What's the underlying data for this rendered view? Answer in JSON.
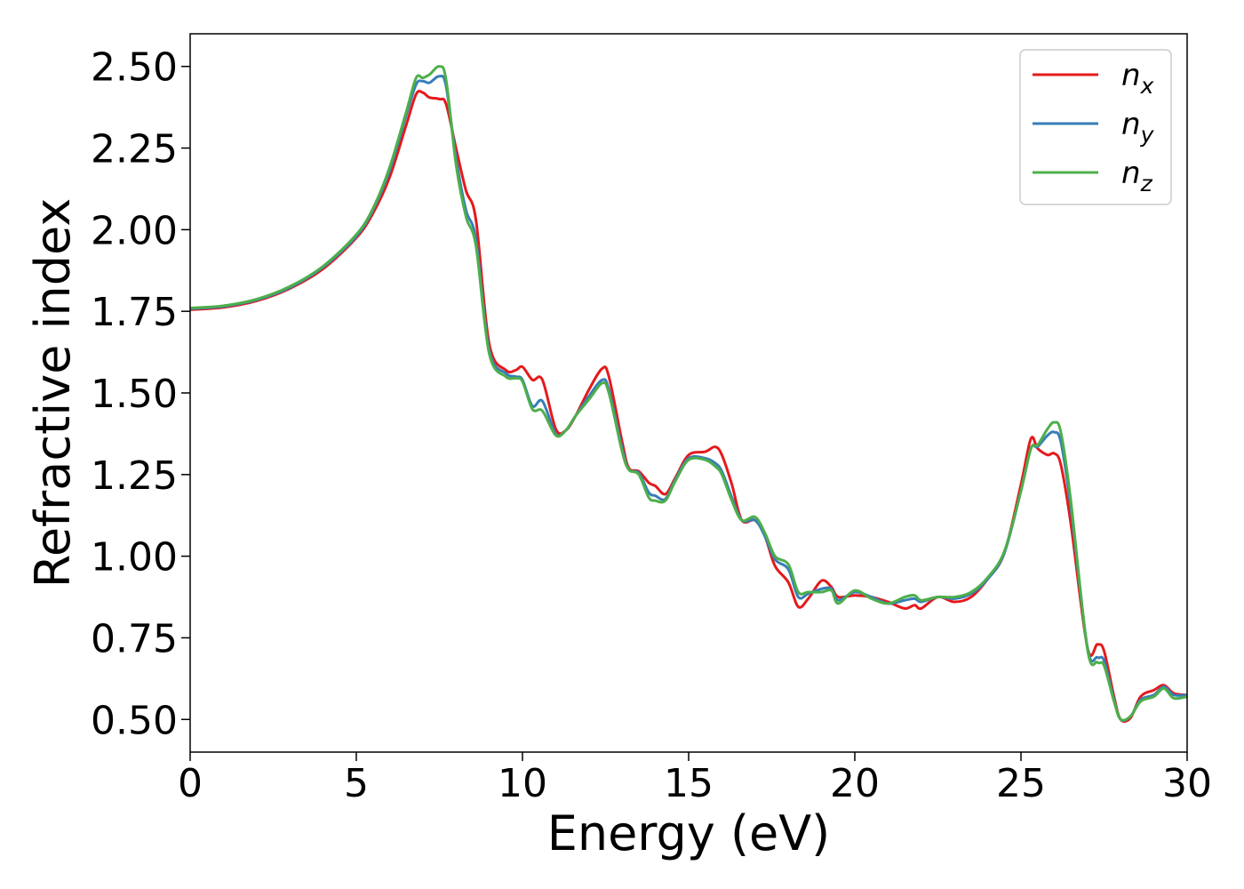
{
  "chart_data": {
    "type": "line",
    "title": "",
    "xlabel": "Energy (eV)",
    "ylabel": "Refractive index",
    "xlim": [
      0,
      30
    ],
    "ylim": [
      0.4,
      2.6
    ],
    "xticks": [
      0,
      5,
      10,
      15,
      20,
      25,
      30
    ],
    "xtick_labels": [
      "0",
      "5",
      "10",
      "15",
      "20",
      "25",
      "30"
    ],
    "yticks": [
      0.5,
      0.75,
      1.0,
      1.25,
      1.5,
      1.75,
      2.0,
      2.25,
      2.5
    ],
    "ytick_labels": [
      "0.50",
      "0.75",
      "1.00",
      "1.25",
      "1.50",
      "1.75",
      "2.00",
      "2.25",
      "2.50"
    ],
    "grid": false,
    "legend_position": "top-right",
    "series": [
      {
        "name": "n",
        "subscript": "x",
        "color": "#e41a1c",
        "points": [
          [
            0,
            1.755
          ],
          [
            1,
            1.762
          ],
          [
            2,
            1.782
          ],
          [
            3,
            1.82
          ],
          [
            4,
            1.88
          ],
          [
            5,
            1.975
          ],
          [
            5.5,
            2.05
          ],
          [
            6,
            2.16
          ],
          [
            6.5,
            2.32
          ],
          [
            6.8,
            2.415
          ],
          [
            7,
            2.42
          ],
          [
            7.2,
            2.405
          ],
          [
            7.5,
            2.4
          ],
          [
            7.7,
            2.385
          ],
          [
            8,
            2.25
          ],
          [
            8.3,
            2.12
          ],
          [
            8.6,
            2.03
          ],
          [
            9,
            1.65
          ],
          [
            9.5,
            1.57
          ],
          [
            9.8,
            1.57
          ],
          [
            10,
            1.58
          ],
          [
            10.3,
            1.54
          ],
          [
            10.6,
            1.54
          ],
          [
            11,
            1.39
          ],
          [
            11.3,
            1.385
          ],
          [
            11.6,
            1.43
          ],
          [
            12,
            1.51
          ],
          [
            12.4,
            1.575
          ],
          [
            12.6,
            1.55
          ],
          [
            13,
            1.35
          ],
          [
            13.2,
            1.27
          ],
          [
            13.5,
            1.26
          ],
          [
            13.8,
            1.225
          ],
          [
            14,
            1.215
          ],
          [
            14.3,
            1.19
          ],
          [
            14.6,
            1.24
          ],
          [
            15,
            1.31
          ],
          [
            15.5,
            1.32
          ],
          [
            15.8,
            1.335
          ],
          [
            16,
            1.31
          ],
          [
            16.3,
            1.22
          ],
          [
            16.6,
            1.11
          ],
          [
            17,
            1.11
          ],
          [
            17.3,
            1.06
          ],
          [
            17.6,
            0.97
          ],
          [
            18,
            0.92
          ],
          [
            18.3,
            0.845
          ],
          [
            18.6,
            0.87
          ],
          [
            19,
            0.925
          ],
          [
            19.3,
            0.905
          ],
          [
            19.5,
            0.875
          ],
          [
            20,
            0.88
          ],
          [
            20.5,
            0.875
          ],
          [
            21,
            0.86
          ],
          [
            21.5,
            0.84
          ],
          [
            21.8,
            0.85
          ],
          [
            22,
            0.84
          ],
          [
            22.5,
            0.875
          ],
          [
            23,
            0.86
          ],
          [
            23.5,
            0.875
          ],
          [
            24,
            0.93
          ],
          [
            24.5,
            1.01
          ],
          [
            25,
            1.22
          ],
          [
            25.3,
            1.36
          ],
          [
            25.5,
            1.33
          ],
          [
            25.8,
            1.31
          ],
          [
            26,
            1.315
          ],
          [
            26.2,
            1.28
          ],
          [
            26.5,
            1.1
          ],
          [
            27,
            0.72
          ],
          [
            27.3,
            0.73
          ],
          [
            27.5,
            0.71
          ],
          [
            27.8,
            0.57
          ],
          [
            28,
            0.5
          ],
          [
            28.3,
            0.505
          ],
          [
            28.6,
            0.57
          ],
          [
            29,
            0.59
          ],
          [
            29.3,
            0.605
          ],
          [
            29.6,
            0.58
          ],
          [
            30,
            0.575
          ]
        ]
      },
      {
        "name": "n",
        "subscript": "y",
        "color": "#377eb8",
        "points": [
          [
            0,
            1.758
          ],
          [
            1,
            1.765
          ],
          [
            2,
            1.785
          ],
          [
            3,
            1.823
          ],
          [
            4,
            1.885
          ],
          [
            5,
            1.98
          ],
          [
            5.5,
            2.06
          ],
          [
            6,
            2.18
          ],
          [
            6.5,
            2.35
          ],
          [
            6.8,
            2.445
          ],
          [
            7,
            2.455
          ],
          [
            7.2,
            2.45
          ],
          [
            7.5,
            2.47
          ],
          [
            7.7,
            2.44
          ],
          [
            8,
            2.22
          ],
          [
            8.3,
            2.06
          ],
          [
            8.6,
            1.97
          ],
          [
            9,
            1.63
          ],
          [
            9.5,
            1.56
          ],
          [
            9.8,
            1.55
          ],
          [
            10,
            1.54
          ],
          [
            10.3,
            1.46
          ],
          [
            10.6,
            1.475
          ],
          [
            11,
            1.375
          ],
          [
            11.3,
            1.385
          ],
          [
            11.6,
            1.43
          ],
          [
            12,
            1.49
          ],
          [
            12.4,
            1.54
          ],
          [
            12.6,
            1.51
          ],
          [
            13,
            1.33
          ],
          [
            13.2,
            1.265
          ],
          [
            13.5,
            1.255
          ],
          [
            13.8,
            1.195
          ],
          [
            14,
            1.185
          ],
          [
            14.3,
            1.175
          ],
          [
            14.6,
            1.235
          ],
          [
            15,
            1.3
          ],
          [
            15.5,
            1.3
          ],
          [
            15.8,
            1.285
          ],
          [
            16,
            1.26
          ],
          [
            16.3,
            1.18
          ],
          [
            16.6,
            1.11
          ],
          [
            17,
            1.11
          ],
          [
            17.3,
            1.06
          ],
          [
            17.6,
            0.99
          ],
          [
            18,
            0.96
          ],
          [
            18.3,
            0.875
          ],
          [
            18.6,
            0.885
          ],
          [
            19,
            0.9
          ],
          [
            19.3,
            0.9
          ],
          [
            19.5,
            0.865
          ],
          [
            20,
            0.89
          ],
          [
            20.5,
            0.875
          ],
          [
            21,
            0.855
          ],
          [
            21.5,
            0.865
          ],
          [
            21.8,
            0.87
          ],
          [
            22,
            0.86
          ],
          [
            22.5,
            0.875
          ],
          [
            23,
            0.87
          ],
          [
            23.5,
            0.885
          ],
          [
            24,
            0.93
          ],
          [
            24.5,
            1.01
          ],
          [
            25,
            1.2
          ],
          [
            25.3,
            1.33
          ],
          [
            25.5,
            1.335
          ],
          [
            25.8,
            1.37
          ],
          [
            26,
            1.38
          ],
          [
            26.2,
            1.35
          ],
          [
            26.5,
            1.15
          ],
          [
            27,
            0.72
          ],
          [
            27.3,
            0.69
          ],
          [
            27.5,
            0.68
          ],
          [
            27.8,
            0.56
          ],
          [
            28,
            0.5
          ],
          [
            28.3,
            0.51
          ],
          [
            28.6,
            0.56
          ],
          [
            29,
            0.575
          ],
          [
            29.3,
            0.6
          ],
          [
            29.6,
            0.575
          ],
          [
            30,
            0.575
          ]
        ]
      },
      {
        "name": "n",
        "subscript": "z",
        "color": "#4daf4a",
        "points": [
          [
            0,
            1.76
          ],
          [
            1,
            1.767
          ],
          [
            2,
            1.787
          ],
          [
            3,
            1.826
          ],
          [
            4,
            1.888
          ],
          [
            5,
            1.985
          ],
          [
            5.5,
            2.065
          ],
          [
            6,
            2.19
          ],
          [
            6.5,
            2.36
          ],
          [
            6.8,
            2.465
          ],
          [
            7,
            2.465
          ],
          [
            7.2,
            2.475
          ],
          [
            7.5,
            2.5
          ],
          [
            7.7,
            2.46
          ],
          [
            8,
            2.2
          ],
          [
            8.3,
            2.04
          ],
          [
            8.6,
            1.95
          ],
          [
            9,
            1.62
          ],
          [
            9.5,
            1.55
          ],
          [
            9.8,
            1.545
          ],
          [
            10,
            1.535
          ],
          [
            10.3,
            1.45
          ],
          [
            10.6,
            1.445
          ],
          [
            11,
            1.37
          ],
          [
            11.3,
            1.385
          ],
          [
            11.6,
            1.43
          ],
          [
            12,
            1.48
          ],
          [
            12.4,
            1.53
          ],
          [
            12.6,
            1.5
          ],
          [
            13,
            1.32
          ],
          [
            13.2,
            1.265
          ],
          [
            13.5,
            1.25
          ],
          [
            13.8,
            1.18
          ],
          [
            14,
            1.17
          ],
          [
            14.3,
            1.17
          ],
          [
            14.6,
            1.23
          ],
          [
            15,
            1.295
          ],
          [
            15.5,
            1.295
          ],
          [
            15.8,
            1.275
          ],
          [
            16,
            1.25
          ],
          [
            16.3,
            1.17
          ],
          [
            16.6,
            1.11
          ],
          [
            17,
            1.12
          ],
          [
            17.3,
            1.07
          ],
          [
            17.6,
            1.0
          ],
          [
            18,
            0.975
          ],
          [
            18.3,
            0.89
          ],
          [
            18.6,
            0.89
          ],
          [
            19,
            0.89
          ],
          [
            19.3,
            0.895
          ],
          [
            19.5,
            0.855
          ],
          [
            20,
            0.895
          ],
          [
            20.5,
            0.87
          ],
          [
            21,
            0.855
          ],
          [
            21.5,
            0.875
          ],
          [
            21.8,
            0.88
          ],
          [
            22,
            0.865
          ],
          [
            22.5,
            0.875
          ],
          [
            23,
            0.875
          ],
          [
            23.5,
            0.89
          ],
          [
            24,
            0.935
          ],
          [
            24.5,
            1.015
          ],
          [
            25,
            1.2
          ],
          [
            25.3,
            1.33
          ],
          [
            25.5,
            1.34
          ],
          [
            25.8,
            1.39
          ],
          [
            26,
            1.41
          ],
          [
            26.2,
            1.38
          ],
          [
            26.5,
            1.17
          ],
          [
            27,
            0.715
          ],
          [
            27.3,
            0.675
          ],
          [
            27.5,
            0.665
          ],
          [
            27.8,
            0.555
          ],
          [
            28,
            0.5
          ],
          [
            28.3,
            0.51
          ],
          [
            28.6,
            0.555
          ],
          [
            29,
            0.57
          ],
          [
            29.3,
            0.595
          ],
          [
            29.6,
            0.565
          ],
          [
            30,
            0.57
          ]
        ]
      }
    ]
  }
}
